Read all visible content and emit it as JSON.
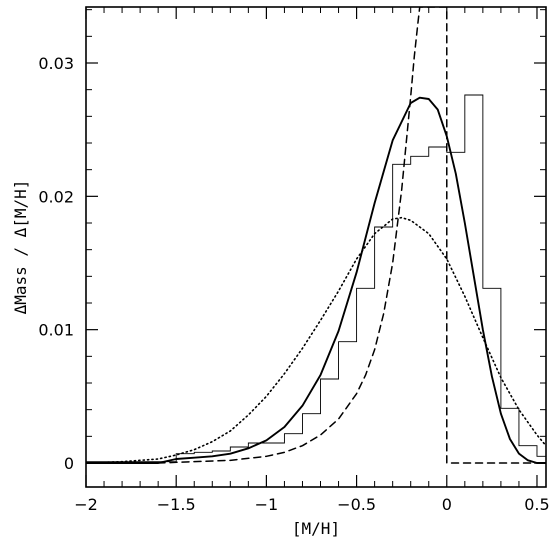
{
  "chart_data": {
    "type": "line",
    "title": "",
    "xlabel": "[M/H]",
    "ylabel": "ΔMass / Δ[M/H]",
    "xlim": [
      -2.0,
      0.55
    ],
    "ylim": [
      -0.0018,
      0.0342
    ],
    "x_ticks": [
      -2,
      -1.5,
      -1,
      -0.5,
      0,
      0.5
    ],
    "x_tick_labels": [
      "−2",
      "−1.5",
      "−1",
      "−0.5",
      "0",
      "0.5"
    ],
    "y_ticks": [
      0,
      0.01,
      0.02,
      0.03
    ],
    "y_tick_labels": [
      "0",
      "0.01",
      "0.02",
      "0.03"
    ],
    "grid": false,
    "legend": "none",
    "histogram": {
      "name": "",
      "style": "steps",
      "bin_edges": [
        -2.0,
        -1.5,
        -1.4,
        -1.3,
        -1.2,
        -1.1,
        -1.0,
        -0.9,
        -0.8,
        -0.7,
        -0.6,
        -0.5,
        -0.4,
        -0.3,
        -0.2,
        -0.1,
        0.0,
        0.1,
        0.2,
        0.3,
        0.4,
        0.5,
        0.55
      ],
      "values": [
        0.0001,
        0.0007,
        0.0008,
        0.0009,
        0.0012,
        0.0015,
        0.0015,
        0.0022,
        0.0037,
        0.0063,
        0.0091,
        0.0131,
        0.0177,
        0.0224,
        0.023,
        0.0237,
        0.0233,
        0.0276,
        0.0131,
        0.0041,
        0.0013,
        0.0005
      ]
    },
    "series": [
      {
        "name": "",
        "style": "solid",
        "x": [
          -2.0,
          -1.8,
          -1.6,
          -1.5,
          -1.4,
          -1.3,
          -1.2,
          -1.1,
          -1.0,
          -0.9,
          -0.8,
          -0.7,
          -0.6,
          -0.5,
          -0.4,
          -0.3,
          -0.2,
          -0.15,
          -0.1,
          -0.05,
          0.0,
          0.05,
          0.1,
          0.15,
          0.2,
          0.25,
          0.3,
          0.35,
          0.4,
          0.45,
          0.5,
          0.55
        ],
        "y": [
          0.0,
          0.0,
          0.0,
          0.0003,
          0.0004,
          0.0005,
          0.0007,
          0.0011,
          0.0017,
          0.0027,
          0.0043,
          0.0066,
          0.0099,
          0.0143,
          0.0195,
          0.0242,
          0.027,
          0.0274,
          0.0273,
          0.0265,
          0.0245,
          0.0217,
          0.018,
          0.014,
          0.01,
          0.0065,
          0.0037,
          0.0018,
          0.0007,
          0.0002,
          0.0,
          0.0
        ]
      },
      {
        "name": "",
        "style": "dashed",
        "x": [
          -2.0,
          -1.6,
          -1.4,
          -1.2,
          -1.0,
          -0.9,
          -0.8,
          -0.7,
          -0.6,
          -0.5,
          -0.45,
          -0.4,
          -0.35,
          -0.3,
          -0.25,
          -0.2,
          -0.18,
          -0.16,
          -0.15,
          -0.14,
          -0.13,
          -0.12,
          -0.11,
          0.0,
          0.0,
          0.55
        ],
        "y": [
          0.0,
          0.0,
          0.0001,
          0.0002,
          0.0005,
          0.0008,
          0.0013,
          0.0021,
          0.0033,
          0.0052,
          0.0066,
          0.0085,
          0.0112,
          0.015,
          0.0205,
          0.0275,
          0.0305,
          0.033,
          0.0342,
          0.0342,
          0.0342,
          0.0342,
          0.0342,
          0.0342,
          0.0,
          0.0
        ]
      },
      {
        "name": "",
        "style": "dotted",
        "x": [
          -2.0,
          -1.8,
          -1.6,
          -1.5,
          -1.4,
          -1.3,
          -1.2,
          -1.1,
          -1.0,
          -0.9,
          -0.8,
          -0.7,
          -0.6,
          -0.5,
          -0.4,
          -0.3,
          -0.25,
          -0.2,
          -0.1,
          0.0,
          0.1,
          0.2,
          0.3,
          0.4,
          0.5,
          0.55
        ],
        "y": [
          0.0,
          0.0001,
          0.0003,
          0.0006,
          0.001,
          0.0016,
          0.0024,
          0.0036,
          0.005,
          0.0067,
          0.0086,
          0.0107,
          0.0129,
          0.0153,
          0.0172,
          0.0183,
          0.0184,
          0.0182,
          0.0172,
          0.0153,
          0.0125,
          0.0094,
          0.0064,
          0.004,
          0.0021,
          0.0013
        ]
      }
    ]
  }
}
